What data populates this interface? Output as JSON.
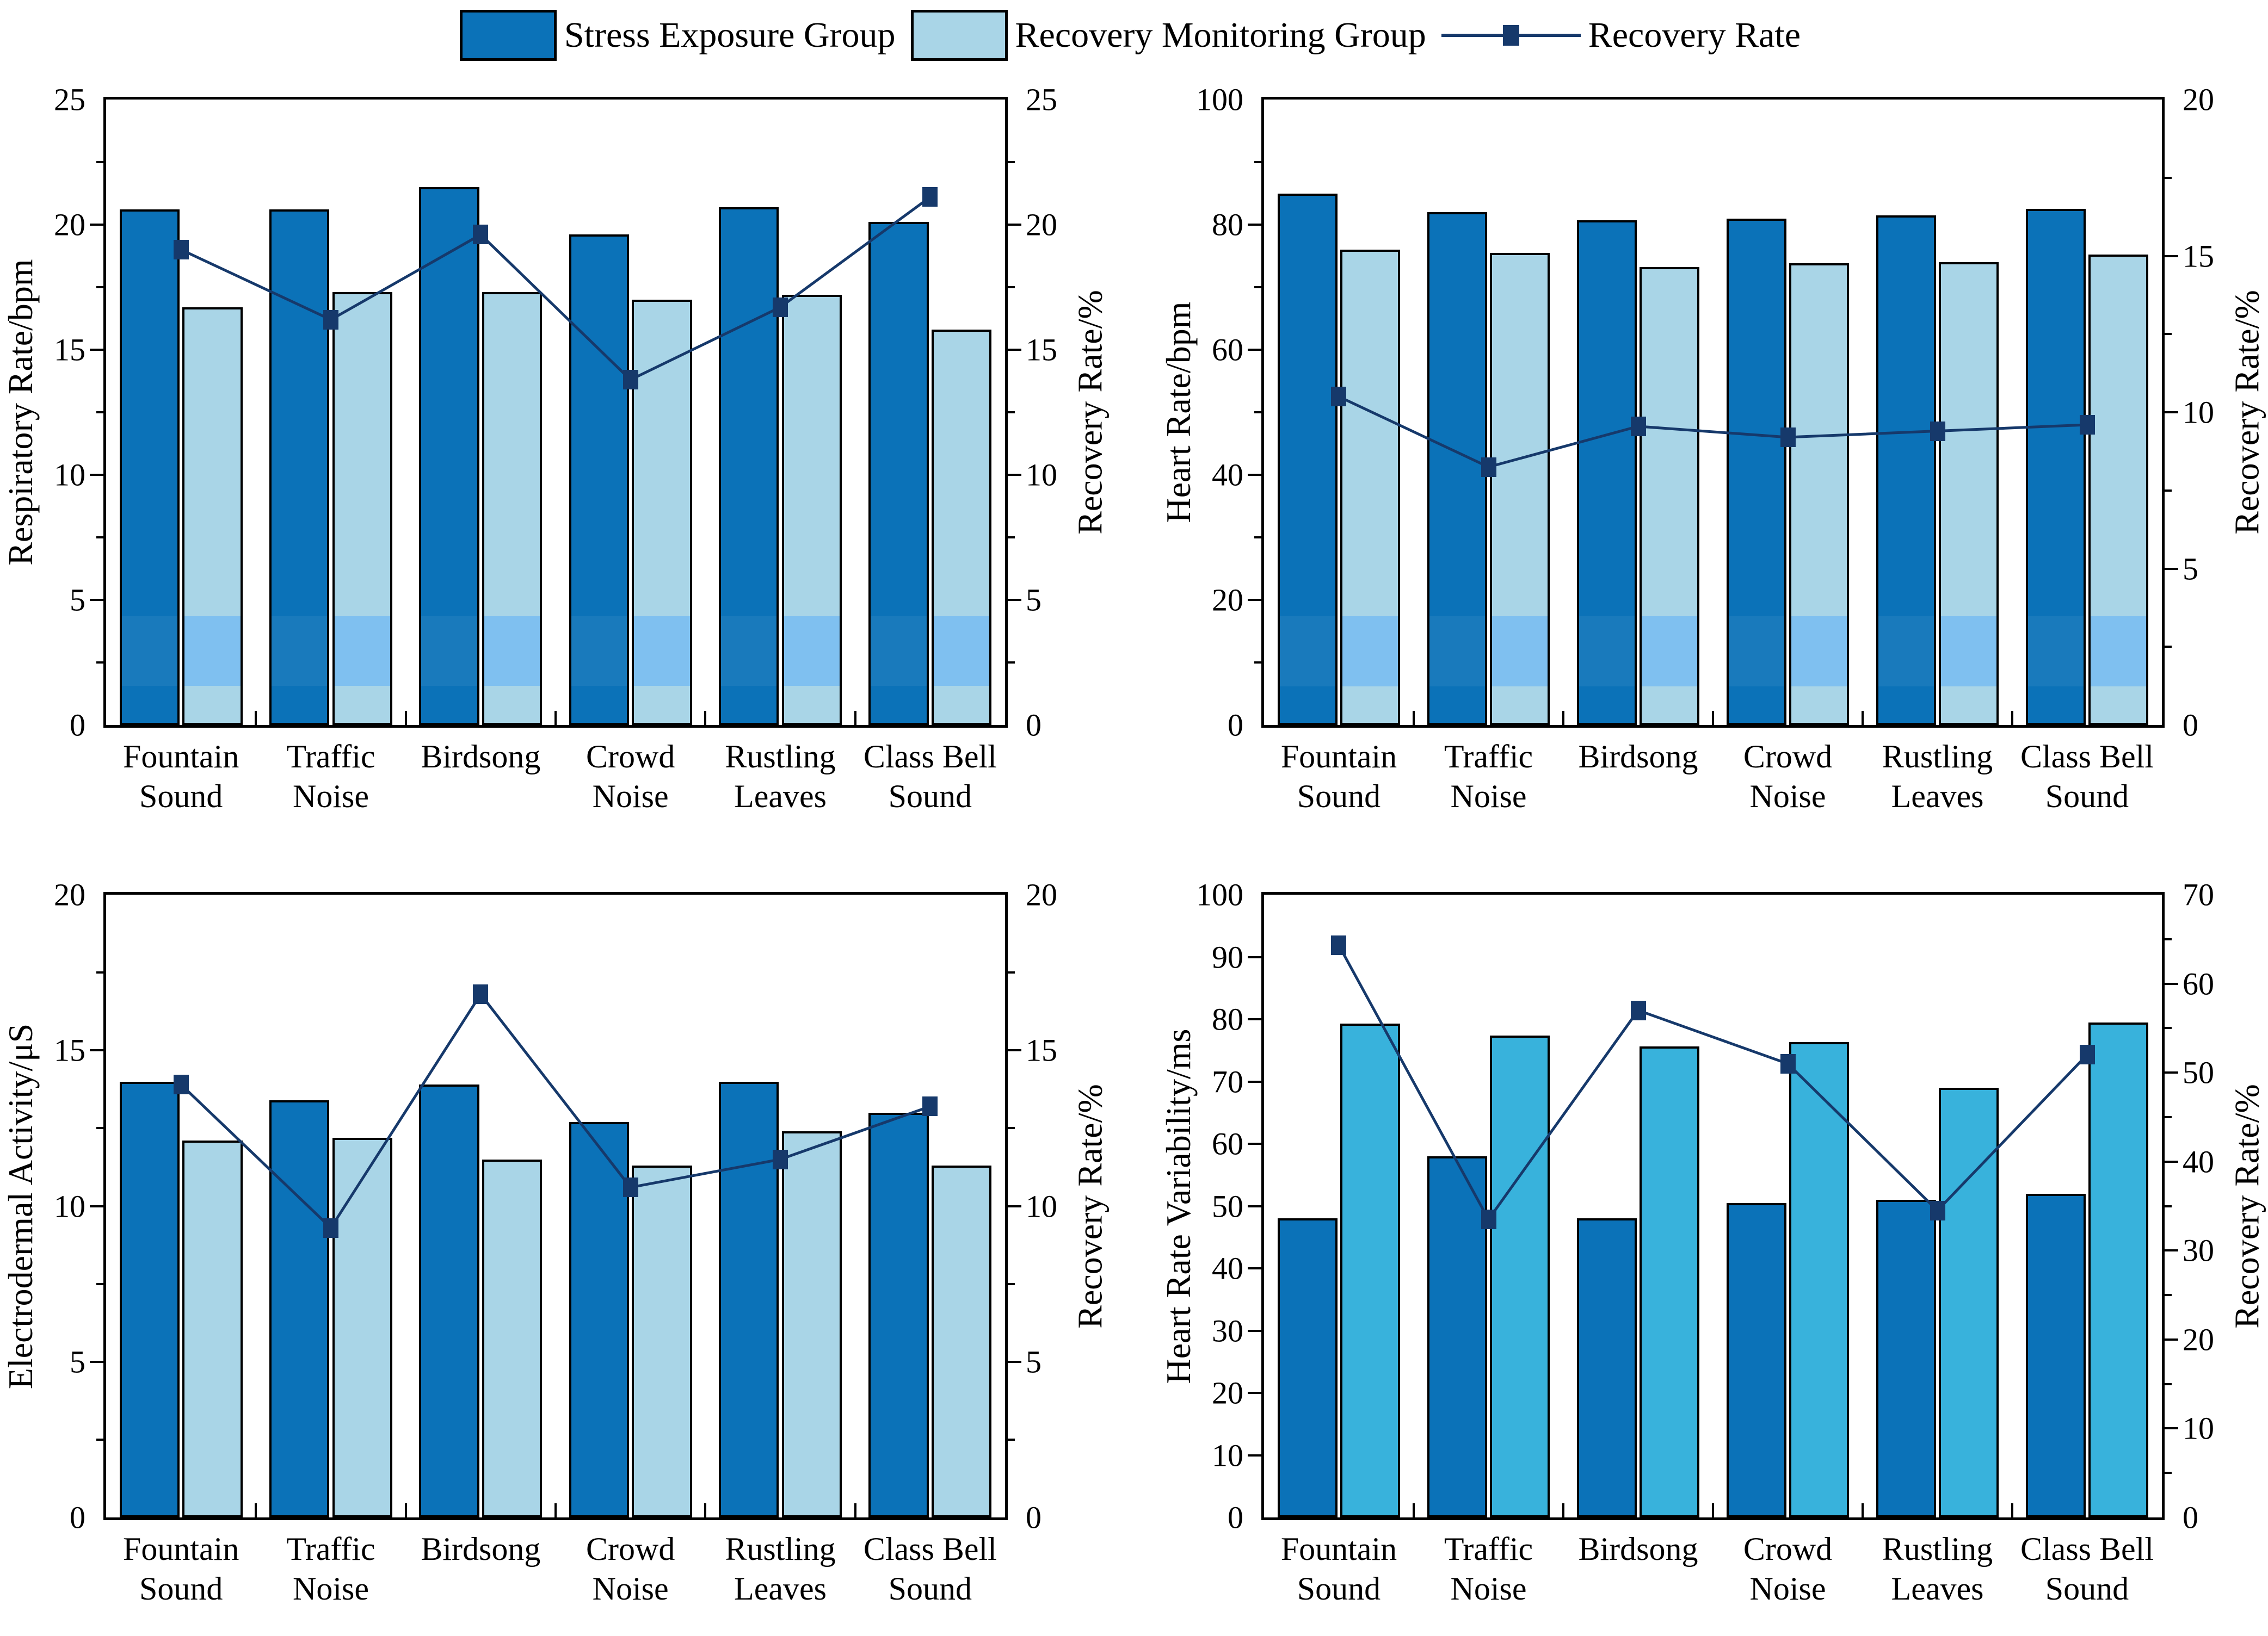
{
  "legend": {
    "stress_label": "Stress Exposure Group",
    "recovery_group_label": "Recovery Monitoring Group",
    "recovery_rate_label": "Recovery Rate"
  },
  "colors": {
    "stress_bar": "#0b72b8",
    "recovery_bar_light": "#a9d5e7",
    "recovery_bar_cyan": "#38b2dc",
    "recovery_line": "#16396b",
    "bar_edge": "#000000",
    "band_tint_on_light": "rgba(64,160,255,0.40)",
    "band_tint_on_dark": "rgba(255,255,255,0.06)"
  },
  "chart_data": {
    "type": "bar+line",
    "categories": [
      [
        "Fountain",
        "Sound"
      ],
      [
        "Traffic",
        "Noise"
      ],
      [
        "Birdsong"
      ],
      [
        "Crowd",
        "Noise"
      ],
      [
        "Rustling",
        "Leaves"
      ],
      [
        "Class Bell",
        "Sound"
      ]
    ],
    "legend_entries": [
      "Stress Exposure Group",
      "Recovery Monitoring Group",
      "Recovery Rate"
    ],
    "panels": [
      {
        "position": "top-left",
        "ylabel_left": "Respiratory Rate/bpm",
        "ylabel_right": "Recovery Rate/%",
        "left_axis": {
          "min": 0,
          "max": 25,
          "major": 5,
          "minor": 2.5,
          "labels": [
            "0",
            "5",
            "10",
            "15",
            "20",
            "25"
          ]
        },
        "right_axis": {
          "min": 0,
          "max": 25,
          "major": 5,
          "minor": 2.5,
          "labels": [
            "0",
            "5",
            "10",
            "15",
            "20",
            "25"
          ]
        },
        "series": [
          {
            "name": "Stress Exposure Group",
            "type": "bar",
            "axis": "left",
            "values": [
              20.6,
              20.6,
              21.5,
              19.6,
              20.7,
              20.1
            ]
          },
          {
            "name": "Recovery Monitoring Group",
            "type": "bar",
            "axis": "left",
            "values": [
              16.7,
              17.3,
              17.3,
              17.0,
              17.2,
              15.8
            ]
          },
          {
            "name": "Recovery Rate",
            "type": "line",
            "axis": "right",
            "values": [
              19.0,
              16.2,
              19.6,
              13.8,
              16.7,
              21.1
            ]
          }
        ],
        "band": {
          "from": 1.5,
          "to": 4.3
        }
      },
      {
        "position": "top-right",
        "ylabel_left": "Heart Rate/bpm",
        "ylabel_right": "Recovery Rate/%",
        "left_axis": {
          "min": 0,
          "max": 100,
          "major": 20,
          "minor": 10,
          "labels": [
            "0",
            "20",
            "40",
            "60",
            "80",
            "100"
          ]
        },
        "right_axis": {
          "min": 0,
          "max": 20,
          "major": 5,
          "minor": 2.5,
          "labels": [
            "0",
            "5",
            "10",
            "15",
            "20"
          ]
        },
        "series": [
          {
            "name": "Stress Exposure Group",
            "type": "bar",
            "axis": "left",
            "values": [
              85.0,
              82.0,
              80.7,
              81.0,
              81.5,
              82.5
            ]
          },
          {
            "name": "Recovery Monitoring Group",
            "type": "bar",
            "axis": "left",
            "values": [
              76.0,
              75.5,
              73.2,
              73.8,
              74.0,
              75.2
            ]
          },
          {
            "name": "Recovery Rate",
            "type": "line",
            "axis": "right",
            "values": [
              10.5,
              8.25,
              9.55,
              9.2,
              9.4,
              9.6
            ]
          }
        ],
        "band": {
          "from": 5.9,
          "to": 17.2
        }
      },
      {
        "position": "bottom-left",
        "ylabel_left": "Electrodermal Activity/μS",
        "ylabel_right": "Recovery Rate/%",
        "left_axis": {
          "min": 0,
          "max": 20,
          "major": 5,
          "minor": 2.5,
          "labels": [
            "0",
            "5",
            "10",
            "15",
            "20"
          ]
        },
        "right_axis": {
          "min": 0,
          "max": 20,
          "major": 5,
          "minor": 2.5,
          "labels": [
            "0",
            "5",
            "10",
            "15",
            "20"
          ]
        },
        "series": [
          {
            "name": "Stress Exposure Group",
            "type": "bar",
            "axis": "left",
            "values": [
              14.0,
              13.4,
              13.9,
              12.7,
              14.0,
              13.0
            ]
          },
          {
            "name": "Recovery Monitoring Group",
            "type": "bar",
            "axis": "left",
            "values": [
              12.1,
              12.2,
              11.5,
              11.3,
              12.4,
              11.3
            ]
          },
          {
            "name": "Recovery Rate",
            "type": "line",
            "axis": "right",
            "values": [
              13.9,
              9.3,
              16.8,
              10.6,
              11.5,
              13.2
            ]
          }
        ],
        "band": null
      },
      {
        "position": "bottom-right",
        "ylabel_left": "Heart Rate Variability/ms",
        "ylabel_right": "Recovery Rate/%",
        "left_axis": {
          "min": 0,
          "max": 100,
          "major": 10,
          "minor": null,
          "labels": [
            "0",
            "10",
            "20",
            "30",
            "40",
            "50",
            "60",
            "70",
            "80",
            "90",
            "100"
          ]
        },
        "right_axis": {
          "min": 0,
          "max": 70,
          "major": 10,
          "minor": 5,
          "labels": [
            "0",
            "10",
            "20",
            "30",
            "40",
            "50",
            "60",
            "70"
          ]
        },
        "series": [
          {
            "name": "Stress Exposure Group",
            "type": "bar",
            "axis": "left",
            "values": [
              48.0,
              58.0,
              48.0,
              50.5,
              51.0,
              52.0
            ]
          },
          {
            "name": "Recovery Monitoring Group",
            "type": "bar",
            "axis": "left",
            "values": [
              79.3,
              77.4,
              75.6,
              76.3,
              69.0,
              79.5
            ]
          },
          {
            "name": "Recovery Rate",
            "type": "line",
            "axis": "right",
            "values": [
              64.3,
              33.5,
              57.0,
              51.0,
              34.5,
              52.0
            ]
          }
        ],
        "band": null,
        "light_bar_color": "#38b2dc"
      }
    ]
  }
}
